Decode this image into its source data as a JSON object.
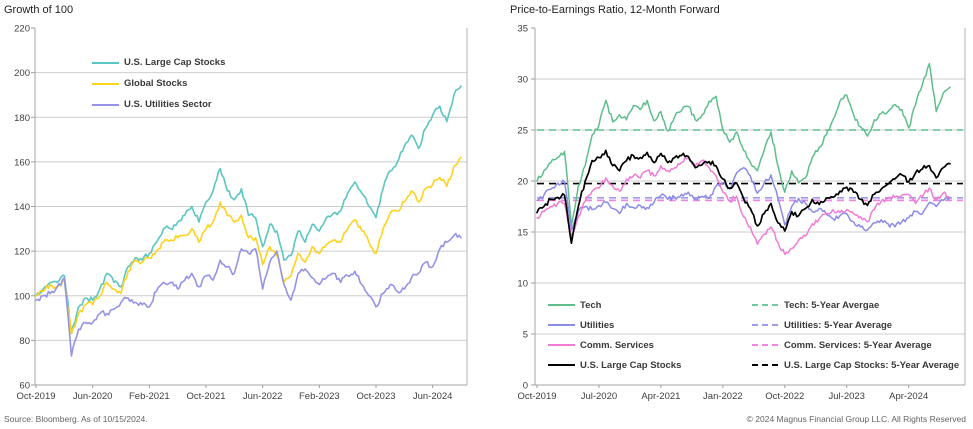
{
  "left_chart": {
    "title": "Growth of 100",
    "y_ticks": [
      220,
      200,
      180,
      160,
      140,
      120,
      100,
      80,
      60
    ],
    "y_max": 220,
    "y_min": 60,
    "x_tick_labels": [
      "Oct-2019",
      "Jun-2020",
      "Feb-2021",
      "Oct-2021",
      "Jun-2022",
      "Feb-2023",
      "Oct-2023",
      "Jun-2024"
    ],
    "x_tick_positions": [
      0,
      8,
      16,
      24,
      32,
      40,
      48,
      56
    ],
    "n_points": 61,
    "chart_data": {
      "type": "line",
      "x_unit": "monthly from Oct-2019 to Oct-2024",
      "series": [
        {
          "name": "U.S. Large Cap Stocks",
          "color": "#5BC6C1",
          "values": [
            100,
            103,
            106,
            106,
            109,
            84,
            95,
            99,
            98,
            103,
            110,
            106,
            104,
            113,
            117,
            116,
            119,
            124,
            130,
            130,
            133,
            136,
            140,
            133,
            142,
            147,
            157,
            147,
            143,
            148,
            136,
            135,
            122,
            132,
            129,
            116,
            118,
            129,
            124,
            132,
            129,
            135,
            137,
            138,
            146,
            151,
            146,
            140,
            135,
            148,
            156,
            160,
            167,
            172,
            166,
            175,
            181,
            185,
            178,
            190,
            194
          ]
        },
        {
          "name": "Global Stocks",
          "color": "#FFD21E",
          "values": [
            100,
            102,
            105,
            104,
            107,
            83,
            92,
            96,
            96,
            100,
            106,
            103,
            101,
            111,
            116,
            115,
            117,
            120,
            124,
            125,
            126,
            127,
            130,
            124,
            130,
            133,
            142,
            136,
            133,
            136,
            126,
            126,
            114,
            122,
            118,
            106,
            109,
            119,
            115,
            122,
            119,
            123,
            125,
            124,
            130,
            134,
            129,
            124,
            119,
            130,
            137,
            138,
            142,
            147,
            142,
            148,
            150,
            153,
            149,
            158,
            162
          ]
        },
        {
          "name": "U.S. Utilities Sector",
          "color": "#9493E8",
          "values": [
            98,
            100,
            101,
            104,
            108,
            73,
            85,
            88,
            88,
            92,
            92,
            94,
            97,
            99,
            97,
            96,
            95,
            102,
            106,
            106,
            103,
            107,
            110,
            104,
            109,
            107,
            116,
            113,
            110,
            121,
            119,
            121,
            103,
            115,
            120,
            105,
            98,
            110,
            112,
            108,
            105,
            108,
            110,
            106,
            109,
            111,
            105,
            100,
            95,
            101,
            105,
            102,
            103,
            108,
            110,
            115,
            113,
            121,
            124,
            127,
            126
          ]
        }
      ]
    }
  },
  "right_chart": {
    "title": "Price-to-Earnings Ratio, 12-Month Forward",
    "y_ticks": [
      35,
      30,
      25,
      20,
      15,
      10,
      5,
      0
    ],
    "y_max": 35,
    "y_min": 0,
    "x_tick_labels": [
      "Oct-2019",
      "Jul-2020",
      "Apr-2021",
      "Jan-2022",
      "Oct-2022",
      "Jul-2023",
      "Apr-2024"
    ],
    "x_tick_positions": [
      0,
      9,
      18,
      27,
      36,
      45,
      54
    ],
    "n_points": 61,
    "chart_data": {
      "type": "line",
      "x_unit": "monthly from Oct-2019 to Oct-2024",
      "series": [
        {
          "name": "Tech",
          "color": "#5FBE8C",
          "values": [
            20.0,
            21.0,
            21.8,
            22.3,
            22.9,
            15.6,
            19.5,
            21.5,
            24.5,
            25.5,
            27.9,
            25.8,
            26.5,
            26.0,
            27.4,
            27.0,
            27.9,
            25.9,
            26.8,
            24.9,
            26.3,
            26.9,
            27.3,
            26.0,
            26.5,
            27.8,
            28.3,
            25.0,
            23.8,
            24.8,
            23.0,
            21.8,
            21.0,
            23.0,
            24.8,
            21.5,
            18.9,
            21.0,
            19.8,
            20.3,
            22.3,
            23.3,
            24.5,
            26.0,
            27.8,
            28.4,
            26.5,
            25.3,
            24.4,
            26.0,
            26.6,
            26.8,
            27.5,
            27.0,
            25.2,
            27.5,
            29.5,
            31.5,
            26.8,
            28.6,
            29.2
          ]
        },
        {
          "name": "Utilities",
          "color": "#8B8BE9",
          "values": [
            18.1,
            18.6,
            19.2,
            19.8,
            19.9,
            15.2,
            17.0,
            17.5,
            17.2,
            17.6,
            17.9,
            17.3,
            16.8,
            17.8,
            17.4,
            17.6,
            17.4,
            17.9,
            18.6,
            18.2,
            18.4,
            18.7,
            18.9,
            18.2,
            18.5,
            18.3,
            19.5,
            19.8,
            19.2,
            20.8,
            21.3,
            20.5,
            18.8,
            19.8,
            20.6,
            18.3,
            15.7,
            17.5,
            18.3,
            17.8,
            17.0,
            17.3,
            16.8,
            16.3,
            16.6,
            16.8,
            16.0,
            15.5,
            15.2,
            15.9,
            16.2,
            15.8,
            15.5,
            16.0,
            16.4,
            17.0,
            16.8,
            17.9,
            17.5,
            18.1,
            18.4
          ]
        },
        {
          "name": "Comm. Services",
          "color": "#F07CD4",
          "values": [
            16.4,
            17.0,
            17.5,
            17.8,
            17.8,
            14.5,
            16.5,
            18.0,
            19.0,
            19.3,
            20.3,
            19.5,
            19.0,
            20.2,
            20.5,
            20.3,
            21.0,
            20.5,
            21.5,
            21.0,
            21.3,
            21.8,
            22.3,
            21.5,
            22.0,
            21.3,
            20.5,
            18.9,
            18.0,
            18.5,
            16.5,
            15.5,
            13.8,
            14.8,
            15.5,
            14.0,
            12.8,
            13.4,
            14.2,
            14.6,
            15.8,
            16.3,
            16.8,
            17.2,
            16.9,
            17.2,
            16.8,
            16.5,
            16.0,
            17.2,
            18.0,
            18.3,
            18.4,
            18.6,
            18.7,
            17.8,
            18.5,
            19.3,
            18.1,
            18.8,
            18.3
          ]
        },
        {
          "name": "U.S. Large Cap Stocks",
          "color": "#000000",
          "values": [
            16.9,
            17.5,
            18.2,
            18.4,
            18.6,
            13.9,
            17.5,
            20.0,
            22.0,
            22.3,
            23.0,
            21.5,
            21.0,
            22.0,
            22.5,
            22.3,
            22.8,
            21.8,
            22.7,
            21.8,
            22.3,
            22.5,
            22.4,
            21.3,
            21.6,
            21.9,
            21.5,
            20.2,
            19.3,
            19.8,
            18.3,
            17.3,
            15.6,
            16.8,
            17.8,
            15.9,
            15.1,
            17.0,
            16.6,
            17.3,
            18.2,
            17.7,
            18.3,
            18.4,
            19.0,
            19.4,
            18.9,
            18.2,
            17.6,
            18.7,
            19.2,
            19.7,
            20.2,
            20.6,
            19.9,
            20.8,
            21.2,
            21.5,
            20.3,
            21.3,
            21.7
          ]
        }
      ],
      "averages": [
        {
          "name": "Tech: 5-Year Avergae",
          "color": "#72CBA0",
          "value": 25.0
        },
        {
          "name": "Utilities: 5-Year Average",
          "color": "#9C9CEF",
          "value": 18.35
        },
        {
          "name": "Comm. Services: 5-Year Average",
          "color": "#EF86DF",
          "value": 18.1
        },
        {
          "name": "U.S. Large Cap Stocks: 5-Year Average",
          "color": "#000000",
          "value": 19.75
        }
      ]
    }
  },
  "footer": {
    "source": "Source: Bloomberg. As of 10/15/2024.",
    "copyright": "© 2024 Magnus Financial Group LLC. All Rights Reserved"
  }
}
